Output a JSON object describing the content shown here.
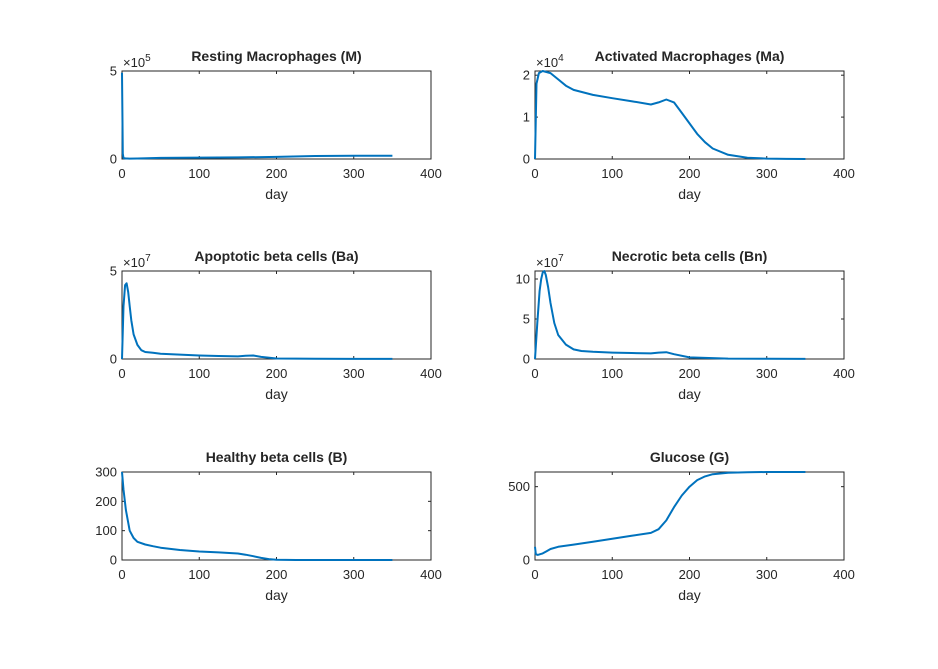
{
  "chart_data": [
    {
      "type": "line",
      "title": "Resting Macrophages (M)",
      "xlabel": "day",
      "exponent": "5",
      "xlim": [
        0,
        400
      ],
      "ylim": [
        0,
        500000
      ],
      "xticks": [
        "0",
        "100",
        "200",
        "300",
        "400"
      ],
      "yticks": [
        "0",
        "5"
      ],
      "series": [
        {
          "x": [
            0,
            1,
            2,
            5,
            10,
            20,
            50,
            100,
            150,
            200,
            250,
            300,
            350
          ],
          "y": [
            490000,
            30000,
            5000,
            3000,
            2000,
            3000,
            6000,
            8000,
            9000,
            12000,
            17000,
            18000,
            18000
          ]
        }
      ]
    },
    {
      "type": "line",
      "title": "Activated Macrophages (Ma)",
      "xlabel": "day",
      "exponent": "4",
      "xlim": [
        0,
        400
      ],
      "ylim": [
        0,
        21000
      ],
      "xticks": [
        "0",
        "100",
        "200",
        "300",
        "400"
      ],
      "yticks": [
        "0",
        "1",
        "2"
      ],
      "series": [
        {
          "x": [
            0,
            2,
            5,
            10,
            20,
            30,
            40,
            50,
            75,
            100,
            125,
            150,
            160,
            170,
            180,
            190,
            200,
            210,
            220,
            230,
            250,
            275,
            300,
            325,
            350
          ],
          "y": [
            0,
            18000,
            20500,
            21000,
            20500,
            19000,
            17500,
            16500,
            15300,
            14500,
            13800,
            13000,
            13500,
            14200,
            13500,
            11000,
            8500,
            6000,
            4000,
            2500,
            1000,
            300,
            100,
            20,
            0
          ]
        }
      ]
    },
    {
      "type": "line",
      "title": "Apoptotic beta cells (Ba)",
      "xlabel": "day",
      "exponent": "7",
      "xlim": [
        0,
        400
      ],
      "ylim": [
        0,
        50000000
      ],
      "xticks": [
        "0",
        "100",
        "200",
        "300",
        "400"
      ],
      "yticks": [
        "0",
        "5"
      ],
      "series": [
        {
          "x": [
            0,
            2,
            4,
            6,
            8,
            10,
            12,
            15,
            20,
            25,
            30,
            40,
            50,
            75,
            100,
            125,
            150,
            160,
            170,
            180,
            200,
            250,
            300,
            350
          ],
          "y": [
            0,
            30000000,
            42000000,
            43000000,
            38000000,
            30000000,
            22000000,
            14000000,
            8000000,
            5000000,
            4000000,
            3500000,
            3000000,
            2500000,
            2000000,
            1700000,
            1500000,
            1800000,
            2000000,
            1200000,
            300000,
            100000,
            50000,
            50000
          ]
        }
      ]
    },
    {
      "type": "line",
      "title": "Necrotic beta cells (Bn)",
      "xlabel": "day",
      "exponent": "7",
      "xlim": [
        0,
        400
      ],
      "ylim": [
        0,
        110000000
      ],
      "xticks": [
        "0",
        "100",
        "200",
        "300",
        "400"
      ],
      "yticks": [
        "0",
        "5",
        "10"
      ],
      "series": [
        {
          "x": [
            0,
            3,
            6,
            8,
            10,
            12,
            14,
            17,
            20,
            25,
            30,
            40,
            50,
            60,
            75,
            100,
            125,
            150,
            160,
            170,
            180,
            200,
            250,
            300,
            350
          ],
          "y": [
            0,
            45000000,
            85000000,
            100000000,
            108000000,
            110000000,
            105000000,
            90000000,
            70000000,
            45000000,
            30000000,
            18000000,
            12000000,
            10000000,
            9000000,
            8000000,
            7500000,
            7000000,
            8000000,
            8500000,
            6000000,
            2000000,
            500000,
            200000,
            100000
          ]
        }
      ]
    },
    {
      "type": "line",
      "title": "Healthy beta cells (B)",
      "xlabel": "day",
      "xlim": [
        0,
        400
      ],
      "ylim": [
        0,
        300
      ],
      "xticks": [
        "0",
        "100",
        "200",
        "300",
        "400"
      ],
      "yticks": [
        "0",
        "100",
        "200",
        "300"
      ],
      "series": [
        {
          "x": [
            0,
            2,
            5,
            10,
            15,
            20,
            30,
            40,
            50,
            75,
            100,
            125,
            150,
            160,
            170,
            180,
            190,
            200,
            225,
            250,
            300,
            350
          ],
          "y": [
            300,
            240,
            170,
            100,
            75,
            62,
            53,
            47,
            42,
            34,
            29,
            26,
            22,
            18,
            13,
            7,
            3,
            1,
            0,
            0,
            0,
            0
          ]
        }
      ]
    },
    {
      "type": "line",
      "title": "Glucose (G)",
      "xlabel": "day",
      "xlim": [
        0,
        400
      ],
      "ylim": [
        0,
        600
      ],
      "xticks": [
        "0",
        "100",
        "200",
        "300",
        "400"
      ],
      "yticks": [
        "0",
        "500"
      ],
      "series": [
        {
          "x": [
            0,
            1,
            3,
            5,
            10,
            15,
            20,
            30,
            50,
            75,
            100,
            125,
            150,
            160,
            170,
            180,
            190,
            200,
            210,
            220,
            230,
            250,
            275,
            300,
            350
          ],
          "y": [
            90,
            40,
            35,
            37,
            45,
            60,
            75,
            90,
            105,
            125,
            145,
            165,
            185,
            210,
            270,
            360,
            440,
            500,
            545,
            570,
            585,
            595,
            598,
            600,
            600
          ]
        }
      ]
    }
  ]
}
